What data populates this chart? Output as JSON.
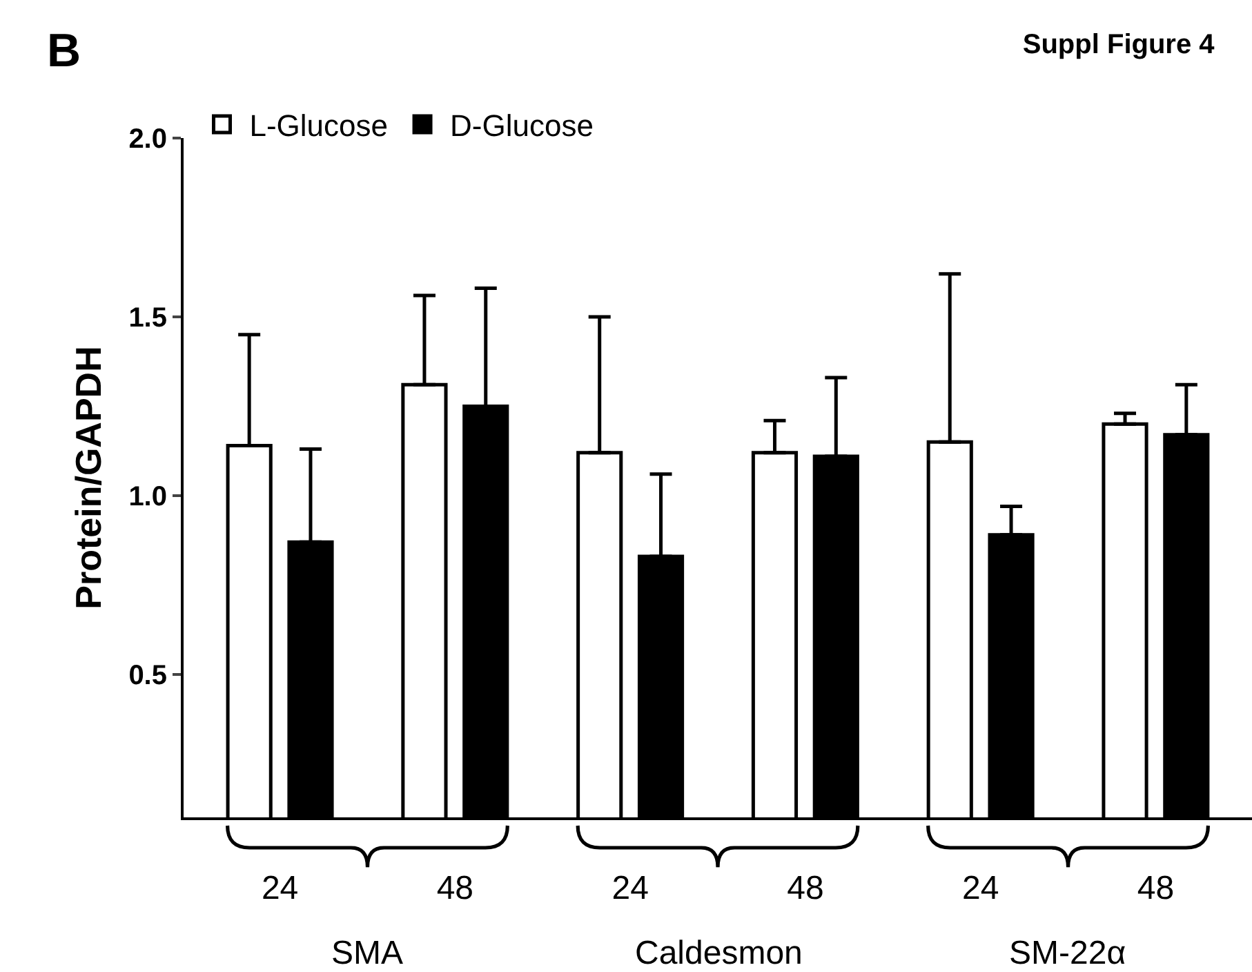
{
  "chart_data": {
    "type": "bar",
    "title": "Suppl Figure 4",
    "ylabel": "Protein/GAPDH",
    "annotations": [
      "B",
      "SMA",
      "Caldesmon",
      "SM-22α"
    ],
    "categories": [
      "24",
      "48",
      "24",
      "48",
      "24",
      "48"
    ],
    "series": [
      {
        "name": "L-Glucose",
        "color": "#ffffff",
        "values": [
          1.14,
          1.31,
          1.12,
          1.12,
          1.15,
          1.2
        ],
        "errors": [
          [
            1.14,
            1.45
          ],
          [
            1.31,
            1.56
          ],
          [
            1.12,
            1.5
          ],
          [
            1.12,
            1.21
          ],
          [
            1.15,
            1.62
          ],
          [
            1.2,
            1.23
          ]
        ]
      },
      {
        "name": "D-Glucose",
        "color": "#000000",
        "values": [
          0.87,
          1.25,
          0.83,
          1.11,
          0.89,
          1.17
        ],
        "errors": [
          [
            0.87,
            1.13
          ],
          [
            1.25,
            1.58
          ],
          [
            0.83,
            1.06
          ],
          [
            1.11,
            1.33
          ],
          [
            0.89,
            0.97
          ],
          [
            1.17,
            1.31
          ]
        ]
      }
    ],
    "ylim": [
      0.1,
      2.0
    ],
    "yticks": [
      {
        "value": 0.5,
        "label": "0.5"
      },
      {
        "value": 1.0,
        "label": "1.0"
      },
      {
        "value": 1.5,
        "label": "1.5"
      },
      {
        "value": 2.0,
        "label": "2.0"
      }
    ],
    "grid": false,
    "legend": "top left"
  }
}
